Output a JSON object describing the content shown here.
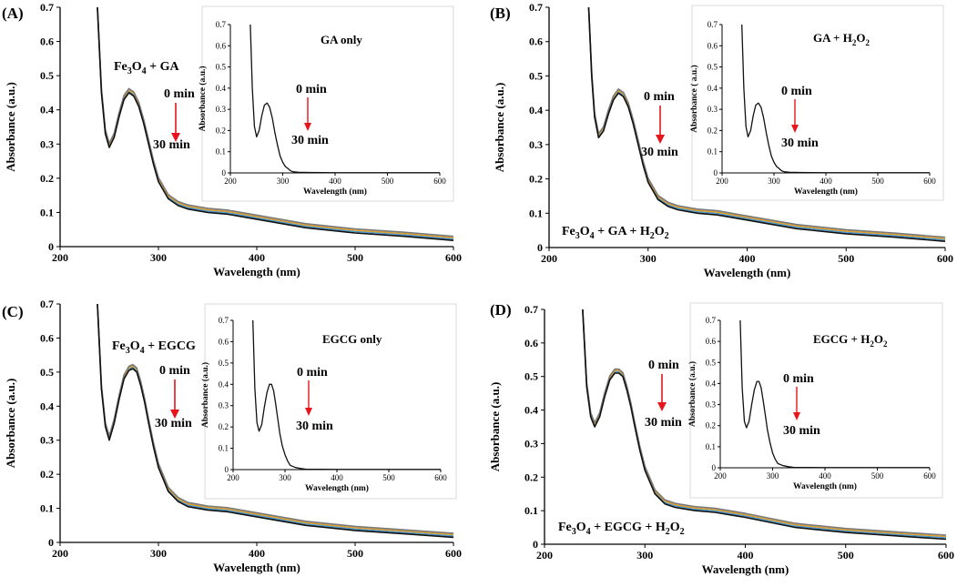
{
  "chart_data": [
    {
      "type": "line",
      "panel_label": "(A)",
      "xlabel": "Wavelength (nm)",
      "ylabel": "Absorbance (a.u.)",
      "xlim": [
        200,
        600
      ],
      "ylim": [
        0,
        0.7
      ],
      "x_ticks": [
        "200",
        "300",
        "400",
        "500",
        "600"
      ],
      "y_ticks": [
        "0",
        "0.1",
        "0.2",
        "0.3",
        "0.4",
        "0.5",
        "0.6",
        "0.7"
      ],
      "sample": {
        "prefix": "Fe",
        "s1": "3",
        "mid": "O",
        "s2": "4",
        "rest": " + GA"
      },
      "peak": {
        "wavelength": 270,
        "absorbance": 0.45
      },
      "arrow": {
        "from": "0 min",
        "to": "30 min"
      },
      "series": {
        "x": [
          238,
          242,
          246,
          250,
          255,
          260,
          265,
          270,
          275,
          280,
          285,
          290,
          295,
          300,
          310,
          320,
          330,
          340,
          350,
          370,
          390,
          400,
          450,
          500,
          550,
          600
        ],
        "y": [
          0.7,
          0.45,
          0.33,
          0.29,
          0.32,
          0.38,
          0.43,
          0.45,
          0.44,
          0.41,
          0.36,
          0.3,
          0.24,
          0.19,
          0.14,
          0.12,
          0.11,
          0.105,
          0.1,
          0.095,
          0.085,
          0.08,
          0.055,
          0.04,
          0.03,
          0.018
        ]
      },
      "inset": {
        "title": "GA only",
        "xlabel": "Wavelength (nm)",
        "ylabel": "Absorbance (a.u.)",
        "xlim": [
          200,
          600
        ],
        "ylim": [
          0,
          0.7
        ],
        "x_ticks": [
          "200",
          "300",
          "400",
          "500",
          "600"
        ],
        "y_ticks": [
          "0",
          "0.1",
          "0.2",
          "0.3",
          "0.4",
          "0.5",
          "0.6",
          "0.7"
        ],
        "arrow": {
          "from": "0 min",
          "to": "30 min"
        },
        "series": {
          "x": [
            238,
            242,
            246,
            250,
            255,
            260,
            265,
            270,
            275,
            280,
            285,
            290,
            295,
            300,
            305,
            310,
            315,
            320,
            330,
            350,
            400,
            500,
            600
          ],
          "y": [
            0.7,
            0.4,
            0.22,
            0.17,
            0.2,
            0.27,
            0.32,
            0.33,
            0.31,
            0.26,
            0.19,
            0.13,
            0.08,
            0.05,
            0.03,
            0.02,
            0.01,
            0.005,
            0.003,
            0.002,
            0.001,
            0.001,
            0.001
          ]
        }
      }
    },
    {
      "type": "line",
      "panel_label": "(B)",
      "xlabel": "Wavelength (nm)",
      "ylabel": "Absorbance (a.u.)",
      "xlim": [
        200,
        600
      ],
      "ylim": [
        0,
        0.7
      ],
      "x_ticks": [
        "200",
        "300",
        "400",
        "500",
        "600"
      ],
      "y_ticks": [
        "0",
        "0.1",
        "0.2",
        "0.3",
        "0.4",
        "0.5",
        "0.6",
        "0.7"
      ],
      "sample": {
        "prefix": "Fe",
        "s1": "3",
        "mid": "O",
        "s2": "4",
        "rest": " + GA + H",
        "s3": "2",
        "tail": "O",
        "s4": "2"
      },
      "peak": {
        "wavelength": 270,
        "absorbance": 0.45
      },
      "arrow": {
        "from": "0 min",
        "to": "30 min"
      },
      "series": {
        "x": [
          240,
          243,
          246,
          250,
          255,
          260,
          265,
          270,
          275,
          280,
          285,
          290,
          295,
          300,
          310,
          320,
          330,
          340,
          350,
          370,
          390,
          400,
          450,
          500,
          550,
          600
        ],
        "y": [
          0.7,
          0.5,
          0.38,
          0.32,
          0.34,
          0.39,
          0.43,
          0.45,
          0.44,
          0.41,
          0.36,
          0.3,
          0.24,
          0.19,
          0.14,
          0.12,
          0.11,
          0.105,
          0.1,
          0.095,
          0.085,
          0.08,
          0.055,
          0.04,
          0.03,
          0.018
        ]
      },
      "inset": {
        "title_parts": {
          "a": "GA + H",
          "s1": "2",
          "b": "O",
          "s2": "2"
        },
        "xlabel": "Wavelength (nm)",
        "ylabel": "Absorbance ( a.u.)",
        "xlim": [
          200,
          600
        ],
        "ylim": [
          0,
          0.7
        ],
        "x_ticks": [
          "200",
          "300",
          "400",
          "500",
          "600"
        ],
        "y_ticks": [
          "0",
          "0.1",
          "0.2",
          "0.3",
          "0.4",
          "0.5",
          "0.6",
          "0.7"
        ],
        "arrow": {
          "from": "0 min",
          "to": "30 min"
        },
        "series": {
          "x": [
            238,
            242,
            246,
            250,
            255,
            260,
            265,
            270,
            275,
            280,
            285,
            290,
            295,
            300,
            305,
            310,
            315,
            320,
            330,
            350,
            400,
            500,
            600
          ],
          "y": [
            0.7,
            0.4,
            0.22,
            0.17,
            0.2,
            0.27,
            0.32,
            0.33,
            0.31,
            0.26,
            0.19,
            0.13,
            0.08,
            0.05,
            0.03,
            0.02,
            0.01,
            0.005,
            0.003,
            0.002,
            0.001,
            0.001,
            0.001
          ]
        }
      }
    },
    {
      "type": "line",
      "panel_label": "(C)",
      "xlabel": "Wavelength (nm)",
      "ylabel": "Absorbance (a.u.)",
      "xlim": [
        200,
        600
      ],
      "ylim": [
        0,
        0.7
      ],
      "x_ticks": [
        "200",
        "300",
        "400",
        "500",
        "600"
      ],
      "y_ticks": [
        "0",
        "0.1",
        "0.2",
        "0.3",
        "0.4",
        "0.5",
        "0.6",
        "0.7"
      ],
      "sample": {
        "prefix": "Fe",
        "s1": "3",
        "mid": "O",
        "s2": "4",
        "rest": " + EGCG"
      },
      "peak": {
        "wavelength": 274,
        "absorbance": 0.51
      },
      "arrow": {
        "from": "0 min",
        "to": "30 min"
      },
      "series": {
        "x": [
          238,
          242,
          246,
          250,
          255,
          260,
          265,
          270,
          274,
          278,
          282,
          286,
          290,
          295,
          300,
          310,
          320,
          330,
          340,
          350,
          370,
          390,
          400,
          450,
          500,
          550,
          600
        ],
        "y": [
          0.7,
          0.45,
          0.34,
          0.3,
          0.35,
          0.42,
          0.48,
          0.505,
          0.51,
          0.5,
          0.46,
          0.41,
          0.35,
          0.28,
          0.22,
          0.15,
          0.12,
          0.105,
          0.1,
          0.095,
          0.09,
          0.08,
          0.075,
          0.05,
          0.035,
          0.025,
          0.015
        ]
      },
      "inset": {
        "title": "EGCG only",
        "xlabel": "Wavelength (nm)",
        "ylabel": "Absorbance (a.u.)",
        "xlim": [
          200,
          600
        ],
        "ylim": [
          0,
          0.7
        ],
        "x_ticks": [
          "200",
          "300",
          "400",
          "500",
          "600"
        ],
        "y_ticks": [
          "0",
          "0.1",
          "0.2",
          "0.3",
          "0.4",
          "0.5",
          "0.6",
          "0.7"
        ],
        "arrow": {
          "from": "0 min",
          "to": "30 min"
        },
        "series": {
          "x": [
            238,
            242,
            246,
            250,
            255,
            260,
            265,
            270,
            274,
            278,
            282,
            286,
            290,
            295,
            300,
            305,
            310,
            320,
            330,
            340,
            400,
            500,
            600
          ],
          "y": [
            0.7,
            0.38,
            0.22,
            0.18,
            0.21,
            0.29,
            0.36,
            0.4,
            0.4,
            0.37,
            0.31,
            0.24,
            0.17,
            0.11,
            0.07,
            0.04,
            0.02,
            0.01,
            0.005,
            0.002,
            0.001,
            0.001,
            0.001
          ]
        }
      }
    },
    {
      "type": "line",
      "panel_label": "(D)",
      "xlabel": "Wavelength (nm)",
      "ylabel": "Absorbance (a.u.)",
      "xlim": [
        200,
        600
      ],
      "ylim": [
        0,
        0.7
      ],
      "x_ticks": [
        "200",
        "300",
        "400",
        "500",
        "600"
      ],
      "y_ticks": [
        "0",
        "0.1",
        "0.2",
        "0.3",
        "0.4",
        "0.5",
        "0.6",
        "0.7"
      ],
      "sample": {
        "prefix": "Fe",
        "s1": "3",
        "mid": "O",
        "s2": "4",
        "rest": " + EGCG + H",
        "s3": "2",
        "tail": "O",
        "s4": "2"
      },
      "peak": {
        "wavelength": 274,
        "absorbance": 0.51
      },
      "arrow": {
        "from": "0 min",
        "to": "30 min"
      },
      "series": {
        "x": [
          238,
          242,
          246,
          250,
          255,
          260,
          265,
          270,
          274,
          278,
          282,
          286,
          290,
          295,
          300,
          310,
          320,
          330,
          340,
          350,
          370,
          390,
          400,
          450,
          500,
          550,
          600
        ],
        "y": [
          0.7,
          0.47,
          0.38,
          0.35,
          0.38,
          0.44,
          0.49,
          0.51,
          0.51,
          0.5,
          0.46,
          0.41,
          0.35,
          0.28,
          0.22,
          0.15,
          0.12,
          0.11,
          0.105,
          0.1,
          0.095,
          0.085,
          0.08,
          0.05,
          0.035,
          0.025,
          0.015
        ]
      },
      "inset": {
        "title_parts": {
          "a": "EGCG + H",
          "s1": "2",
          "b": "O",
          "s2": "2"
        },
        "xlabel": "Wavelength (nm)",
        "ylabel": "Absorbance (a.u.)",
        "xlim": [
          200,
          600
        ],
        "ylim": [
          0,
          0.7
        ],
        "x_ticks": [
          "200",
          "300",
          "400",
          "500",
          "600"
        ],
        "y_ticks": [
          "0",
          "0.1",
          "0.2",
          "0.3",
          "0.4",
          "0.5",
          "0.6",
          "0.7"
        ],
        "arrow": {
          "from": "0 min",
          "to": "30 min"
        },
        "series": {
          "x": [
            238,
            242,
            246,
            250,
            255,
            260,
            265,
            270,
            274,
            278,
            282,
            286,
            290,
            295,
            300,
            305,
            310,
            320,
            330,
            340,
            400,
            500,
            600
          ],
          "y": [
            0.7,
            0.38,
            0.22,
            0.19,
            0.22,
            0.3,
            0.37,
            0.41,
            0.41,
            0.38,
            0.32,
            0.25,
            0.18,
            0.12,
            0.07,
            0.04,
            0.02,
            0.01,
            0.005,
            0.002,
            0.001,
            0.001,
            0.001
          ]
        }
      }
    }
  ],
  "colors": {
    "curve": "#111111",
    "arrow": "#e8141c",
    "overlay": [
      "#4a9ad4",
      "#e0a030",
      "#7a7a7a"
    ]
  }
}
